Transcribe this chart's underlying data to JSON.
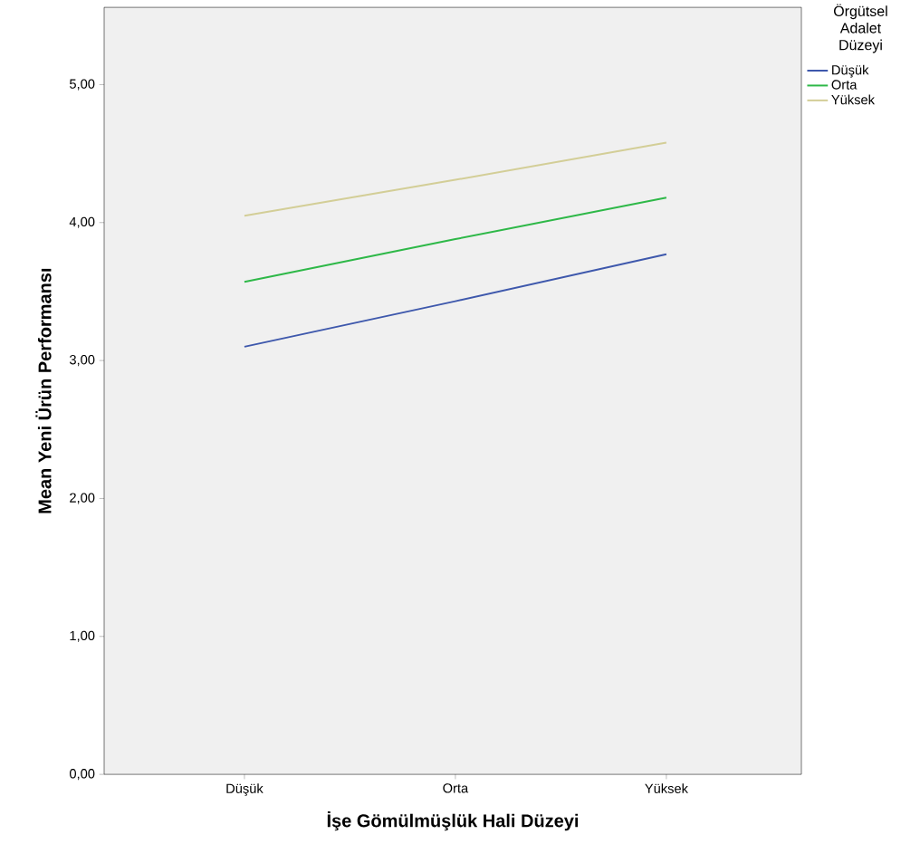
{
  "chart_data": {
    "type": "line",
    "xlabel": "İşe Gömülmüşlük Hali Düzeyi",
    "ylabel": "Mean Yeni Ürün Performansı",
    "legend_title": "Örgütsel Adalet Düzeyi",
    "categories": [
      "Düşük",
      "Orta",
      "Yüksek"
    ],
    "series": [
      {
        "name": "Düşük",
        "color": "#3e58ac",
        "values": [
          3.1,
          3.43,
          3.77
        ]
      },
      {
        "name": "Orta",
        "color": "#2eb848",
        "values": [
          3.57,
          3.88,
          4.18
        ]
      },
      {
        "name": "Yüksek",
        "color": "#d3ce97",
        "values": [
          4.05,
          4.31,
          4.58
        ]
      }
    ],
    "ylim": [
      0,
      5.56
    ],
    "yticks": [
      {
        "value": 0,
        "label": "0,00"
      },
      {
        "value": 1,
        "label": "1,00"
      },
      {
        "value": 2,
        "label": "2,00"
      },
      {
        "value": 3,
        "label": "3,00"
      },
      {
        "value": 4,
        "label": "4,00"
      },
      {
        "value": 5,
        "label": "5,00"
      }
    ],
    "grid": false,
    "legend": "top right",
    "marker": "none",
    "line_style": "solid"
  }
}
